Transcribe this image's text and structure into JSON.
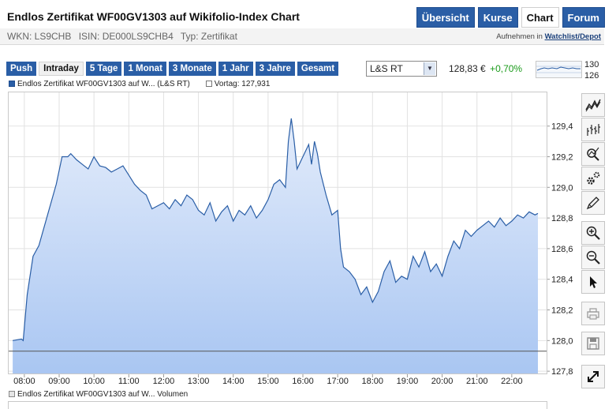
{
  "header": {
    "title": "Endlos Zertifikat WF00GV1303 auf Wikifolio-Index Chart",
    "tabs": [
      {
        "label": "Übersicht",
        "active": false
      },
      {
        "label": "Kurse",
        "active": false
      },
      {
        "label": "Chart",
        "active": true
      },
      {
        "label": "Forum",
        "active": false
      }
    ]
  },
  "meta": {
    "wkn": "WKN: LS9CHB",
    "isin": "ISIN: DE000LS9CHB4",
    "typ": "Typ: Zertifikat",
    "watch_prefix": "Aufnehmen in",
    "watch_link": "Watchlist/Depot"
  },
  "controls": {
    "periods": [
      {
        "label": "Push",
        "active": false
      },
      {
        "label": "Intraday",
        "active": true
      },
      {
        "label": "5 Tage",
        "active": false
      },
      {
        "label": "1 Monat",
        "active": false
      },
      {
        "label": "3 Monate",
        "active": false
      },
      {
        "label": "1 Jahr",
        "active": false
      },
      {
        "label": "3 Jahre",
        "active": false
      },
      {
        "label": "Gesamt",
        "active": false
      }
    ],
    "exchange": "L&S RT",
    "price": "128,83 €",
    "change": "+0,70%",
    "mini_high": "130",
    "mini_low": "126"
  },
  "legend": {
    "series": "Endlos Zertifikat WF00GV1303 auf W... (L&S RT)",
    "prev": "Vortag: 127,931",
    "volume": "Endlos Zertifikat WF00GV1303 auf W... Volumen"
  },
  "colors": {
    "accent": "#2a5ea6",
    "line": "#2a5ea6",
    "fill_top": "#e3ecfb",
    "fill_bottom": "#a9c6f2",
    "positive": "#1a9b1a"
  },
  "tools": [
    {
      "icon": "line-chart-icon"
    },
    {
      "icon": "ohlc-chart-icon"
    },
    {
      "icon": "indicator-icon"
    },
    {
      "icon": "settings-icon"
    },
    {
      "icon": "draw-pen-icon"
    },
    {
      "icon": "zoom-in-icon"
    },
    {
      "icon": "zoom-out-icon"
    },
    {
      "icon": "pointer-icon"
    },
    {
      "icon": "print-icon"
    },
    {
      "icon": "save-icon"
    },
    {
      "icon": "fullscreen-icon"
    }
  ],
  "chart_data": {
    "type": "area",
    "x_ticks": [
      "08:00",
      "09:00",
      "10:00",
      "11:00",
      "12:00",
      "13:00",
      "14:00",
      "15:00",
      "16:00",
      "17:00",
      "18:00",
      "19:00",
      "20:00",
      "21:00",
      "22:00"
    ],
    "y_ticks": [
      "127,8",
      "128,0",
      "128,2",
      "128,4",
      "128,6",
      "128,8",
      "129,0",
      "129,2",
      "129,4"
    ],
    "ylim": [
      127.78,
      129.62
    ],
    "xlim": [
      "07:33",
      "23:00"
    ],
    "reference_line": 127.931,
    "grid": true,
    "series": [
      {
        "x": [
          "07:40",
          "07:55",
          "07:58",
          "08:05",
          "08:15",
          "08:25",
          "08:40",
          "08:55",
          "09:05",
          "09:15",
          "09:20",
          "09:30",
          "09:40",
          "09:50",
          "10:00",
          "10:10",
          "10:20",
          "10:30",
          "10:40",
          "10:50",
          "11:00",
          "11:10",
          "11:20",
          "11:30",
          "11:40",
          "11:50",
          "12:00",
          "12:10",
          "12:20",
          "12:30",
          "12:40",
          "12:50",
          "13:00",
          "13:10",
          "13:20",
          "13:30",
          "13:40",
          "13:50",
          "14:00",
          "14:10",
          "14:20",
          "14:30",
          "14:40",
          "14:50",
          "15:00",
          "15:10",
          "15:20",
          "15:30",
          "15:35",
          "15:40",
          "15:45",
          "15:50",
          "16:00",
          "16:10",
          "16:15",
          "16:20",
          "16:25",
          "16:30",
          "16:40",
          "16:50",
          "17:00",
          "17:05",
          "17:10",
          "17:20",
          "17:30",
          "17:40",
          "17:50",
          "18:00",
          "18:10",
          "18:20",
          "18:30",
          "18:40",
          "18:50",
          "19:00",
          "19:10",
          "19:20",
          "19:30",
          "19:40",
          "19:50",
          "20:00",
          "20:10",
          "20:20",
          "20:30",
          "20:40",
          "20:50",
          "21:00",
          "21:10",
          "21:20",
          "21:30",
          "21:40",
          "21:50",
          "22:00",
          "22:10",
          "22:20",
          "22:30",
          "22:40",
          "22:45"
        ],
        "y": [
          128.0,
          128.01,
          128.0,
          128.3,
          128.55,
          128.62,
          128.82,
          129.02,
          129.2,
          129.2,
          129.22,
          129.18,
          129.15,
          129.12,
          129.2,
          129.14,
          129.13,
          129.1,
          129.12,
          129.14,
          129.08,
          129.02,
          128.98,
          128.95,
          128.86,
          128.88,
          128.9,
          128.86,
          128.92,
          128.88,
          128.95,
          128.92,
          128.85,
          128.82,
          128.9,
          128.78,
          128.84,
          128.88,
          128.78,
          128.85,
          128.82,
          128.88,
          128.8,
          128.85,
          128.92,
          129.02,
          129.05,
          129.0,
          129.3,
          129.45,
          129.3,
          129.12,
          129.2,
          129.28,
          129.15,
          129.3,
          129.22,
          129.1,
          128.95,
          128.82,
          128.85,
          128.6,
          128.48,
          128.45,
          128.4,
          128.3,
          128.35,
          128.25,
          128.32,
          128.45,
          128.52,
          128.38,
          128.42,
          128.4,
          128.55,
          128.48,
          128.58,
          128.45,
          128.5,
          128.42,
          128.55,
          128.65,
          128.6,
          128.72,
          128.68,
          128.72,
          128.75,
          128.78,
          128.74,
          128.8,
          128.75,
          128.78,
          128.82,
          128.8,
          128.84,
          128.82,
          128.83
        ]
      }
    ]
  }
}
